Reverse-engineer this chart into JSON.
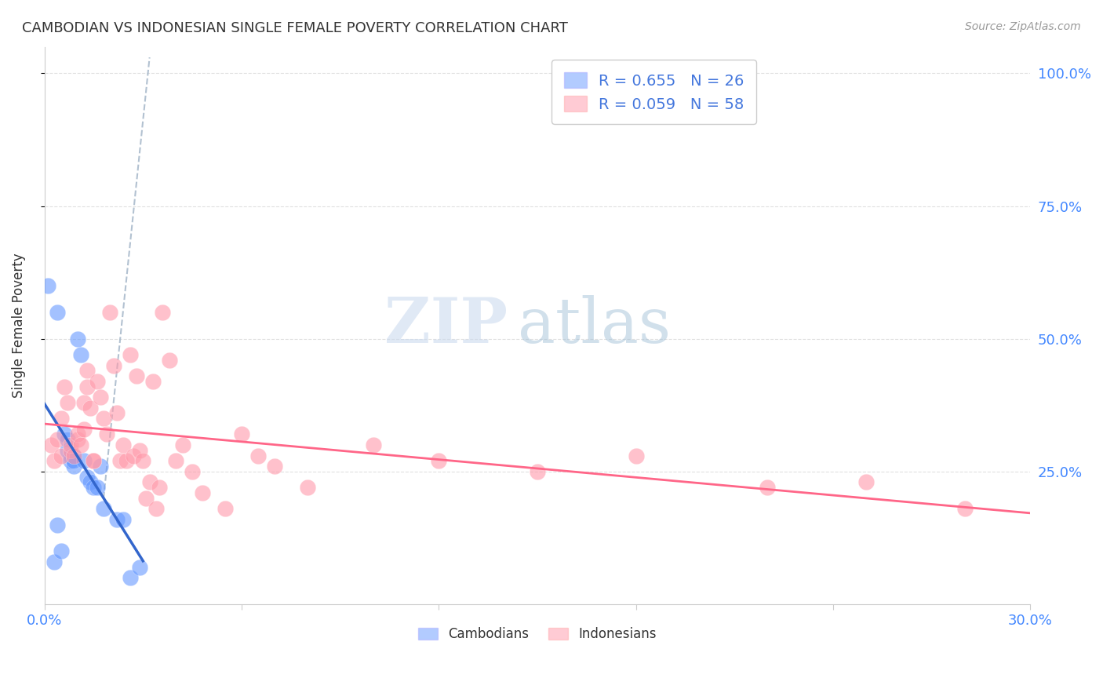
{
  "title": "CAMBODIAN VS INDONESIAN SINGLE FEMALE POVERTY CORRELATION CHART",
  "source": "Source: ZipAtlas.com",
  "ylabel": "Single Female Poverty",
  "right_yticks": [
    "100.0%",
    "75.0%",
    "50.0%",
    "25.0%"
  ],
  "right_ytick_vals": [
    1.0,
    0.75,
    0.5,
    0.25
  ],
  "watermark_zip": "ZIP",
  "watermark_atlas": "atlas",
  "legend_cambodian": "R = 0.655   N = 26",
  "legend_indonesian": "R = 0.059   N = 58",
  "cambodian_color": "#6699FF",
  "indonesian_color": "#FF99AA",
  "trend_cambodian_color": "#3366CC",
  "trend_indonesian_color": "#FF6688",
  "trend_dashed_color": "#AABBCC",
  "cambodian_x": [
    0.001,
    0.003,
    0.004,
    0.004,
    0.005,
    0.006,
    0.007,
    0.007,
    0.008,
    0.008,
    0.009,
    0.009,
    0.009,
    0.01,
    0.011,
    0.012,
    0.013,
    0.014,
    0.015,
    0.016,
    0.017,
    0.018,
    0.022,
    0.024,
    0.026,
    0.029
  ],
  "cambodian_y": [
    0.6,
    0.08,
    0.55,
    0.15,
    0.1,
    0.32,
    0.29,
    0.31,
    0.28,
    0.27,
    0.26,
    0.28,
    0.27,
    0.5,
    0.47,
    0.27,
    0.24,
    0.23,
    0.22,
    0.22,
    0.26,
    0.18,
    0.16,
    0.16,
    0.05,
    0.07
  ],
  "indonesian_x": [
    0.002,
    0.003,
    0.004,
    0.005,
    0.005,
    0.006,
    0.007,
    0.008,
    0.008,
    0.009,
    0.01,
    0.01,
    0.011,
    0.012,
    0.012,
    0.013,
    0.013,
    0.014,
    0.015,
    0.015,
    0.016,
    0.017,
    0.018,
    0.019,
    0.02,
    0.021,
    0.022,
    0.023,
    0.024,
    0.025,
    0.026,
    0.027,
    0.028,
    0.029,
    0.03,
    0.031,
    0.032,
    0.033,
    0.034,
    0.035,
    0.036,
    0.038,
    0.04,
    0.042,
    0.045,
    0.048,
    0.055,
    0.06,
    0.065,
    0.07,
    0.08,
    0.1,
    0.12,
    0.15,
    0.18,
    0.22,
    0.25,
    0.28
  ],
  "indonesian_y": [
    0.3,
    0.27,
    0.31,
    0.35,
    0.28,
    0.41,
    0.38,
    0.29,
    0.3,
    0.28,
    0.31,
    0.32,
    0.3,
    0.38,
    0.33,
    0.44,
    0.41,
    0.37,
    0.27,
    0.27,
    0.42,
    0.39,
    0.35,
    0.32,
    0.55,
    0.45,
    0.36,
    0.27,
    0.3,
    0.27,
    0.47,
    0.28,
    0.43,
    0.29,
    0.27,
    0.2,
    0.23,
    0.42,
    0.18,
    0.22,
    0.55,
    0.46,
    0.27,
    0.3,
    0.25,
    0.21,
    0.18,
    0.32,
    0.28,
    0.26,
    0.22,
    0.3,
    0.27,
    0.25,
    0.28,
    0.22,
    0.23,
    0.18
  ],
  "xlim": [
    0.0,
    0.3
  ],
  "ylim": [
    0.0,
    1.05
  ],
  "background_color": "#FFFFFF",
  "grid_color": "#DDDDDD"
}
